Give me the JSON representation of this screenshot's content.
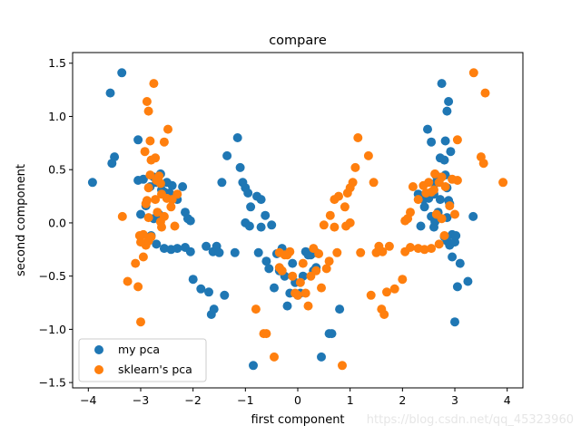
{
  "chart_data": {
    "type": "scatter",
    "title": "compare",
    "xlabel": "first component",
    "ylabel": "second component",
    "xlim": [
      -4.3,
      4.3
    ],
    "ylim": [
      -1.55,
      1.6
    ],
    "xticks": [
      -4,
      -3,
      -2,
      -1,
      0,
      1,
      2,
      3,
      4
    ],
    "xtick_labels": [
      "−4",
      "−3",
      "−2",
      "−1",
      "0",
      "1",
      "2",
      "3",
      "4"
    ],
    "yticks": [
      -1.5,
      -1.0,
      -0.5,
      0.0,
      0.5,
      1.0,
      1.5
    ],
    "ytick_labels": [
      "−1.5",
      "−1.0",
      "−0.5",
      "0.0",
      "0.5",
      "1.0",
      "1.5"
    ],
    "grid": false,
    "legend_position": "lower-left",
    "series": [
      {
        "name": "my pca",
        "color": "#1f77b4",
        "points": [
          [
            -3.92,
            0.38
          ],
          [
            -3.58,
            1.22
          ],
          [
            -3.5,
            0.62
          ],
          [
            -3.55,
            0.56
          ],
          [
            -3.36,
            1.41
          ],
          [
            -3.05,
            0.78
          ],
          [
            -3.05,
            0.4
          ],
          [
            -2.95,
            0.41
          ],
          [
            -3.0,
            0.08
          ],
          [
            -2.9,
            0.16
          ],
          [
            -2.82,
            0.34
          ],
          [
            -2.75,
            0.43
          ],
          [
            -2.7,
            0.38
          ],
          [
            -2.62,
            0.46
          ],
          [
            -2.6,
            0.31
          ],
          [
            -2.55,
            0.29
          ],
          [
            -2.5,
            0.38
          ],
          [
            -2.45,
            0.28
          ],
          [
            -2.4,
            0.35
          ],
          [
            -2.3,
            0.22
          ],
          [
            -2.2,
            0.34
          ],
          [
            -2.15,
            0.1
          ],
          [
            -2.1,
            0.04
          ],
          [
            -2.05,
            0.02
          ],
          [
            -2.65,
            0.08
          ],
          [
            -2.75,
            0.04
          ],
          [
            -2.8,
            -0.12
          ],
          [
            -2.7,
            -0.2
          ],
          [
            -2.55,
            -0.24
          ],
          [
            -2.42,
            -0.25
          ],
          [
            -2.3,
            -0.24
          ],
          [
            -2.15,
            -0.23
          ],
          [
            -2.05,
            -0.27
          ],
          [
            -2.0,
            -0.53
          ],
          [
            -1.85,
            -0.62
          ],
          [
            -1.75,
            -0.22
          ],
          [
            -1.7,
            -0.65
          ],
          [
            -1.65,
            -0.86
          ],
          [
            -1.6,
            -0.81
          ],
          [
            -1.62,
            -0.27
          ],
          [
            -1.55,
            -0.22
          ],
          [
            -1.5,
            -0.28
          ],
          [
            -1.4,
            -0.68
          ],
          [
            -1.45,
            0.38
          ],
          [
            -1.35,
            0.63
          ],
          [
            -1.2,
            -0.28
          ],
          [
            -1.15,
            0.8
          ],
          [
            -1.1,
            0.52
          ],
          [
            -1.05,
            0.38
          ],
          [
            -1.0,
            0.33
          ],
          [
            -0.95,
            0.28
          ],
          [
            -1.0,
            0.0
          ],
          [
            -0.9,
            0.15
          ],
          [
            -0.92,
            -0.03
          ],
          [
            -0.85,
            -1.34
          ],
          [
            -0.78,
            0.25
          ],
          [
            -0.75,
            -0.28
          ],
          [
            -0.7,
            0.22
          ],
          [
            -0.62,
            0.07
          ],
          [
            -0.7,
            -0.04
          ],
          [
            -0.6,
            -0.36
          ],
          [
            -0.55,
            -0.43
          ],
          [
            -0.5,
            -0.02
          ],
          [
            -0.45,
            -0.61
          ],
          [
            -0.4,
            -0.29
          ],
          [
            -0.35,
            -0.45
          ],
          [
            -0.3,
            -0.24
          ],
          [
            -0.25,
            -0.5
          ],
          [
            -0.2,
            -0.78
          ],
          [
            -0.15,
            -0.66
          ],
          [
            -0.1,
            -0.38
          ],
          [
            -0.05,
            -0.56
          ],
          [
            0.0,
            -0.68
          ],
          [
            0.05,
            -0.66
          ],
          [
            0.1,
            -0.5
          ],
          [
            0.15,
            -0.27
          ],
          [
            0.2,
            -0.3
          ],
          [
            0.25,
            -0.3
          ],
          [
            0.3,
            -0.45
          ],
          [
            0.35,
            -0.28
          ],
          [
            0.35,
            -0.42
          ],
          [
            0.45,
            -1.26
          ],
          [
            0.6,
            -1.04
          ],
          [
            0.65,
            -1.04
          ],
          [
            0.8,
            -0.81
          ],
          [
            2.3,
            0.27
          ],
          [
            2.35,
            -0.03
          ],
          [
            2.4,
            0.22
          ],
          [
            2.42,
            0.15
          ],
          [
            2.5,
            0.23
          ],
          [
            2.55,
            0.06
          ],
          [
            2.6,
            0.27
          ],
          [
            2.62,
            0.37
          ],
          [
            2.65,
            0.44
          ],
          [
            2.7,
            0.4
          ],
          [
            2.72,
            0.22
          ],
          [
            2.68,
            0.1
          ],
          [
            2.62,
            0.01
          ],
          [
            2.6,
            -0.04
          ],
          [
            2.55,
            0.76
          ],
          [
            2.48,
            0.88
          ],
          [
            2.72,
            0.61
          ],
          [
            2.75,
            1.31
          ],
          [
            2.8,
            0.59
          ],
          [
            2.82,
            0.45
          ],
          [
            2.85,
            0.33
          ],
          [
            2.88,
            0.21
          ],
          [
            2.9,
            0.18
          ],
          [
            2.85,
            0.05
          ],
          [
            2.8,
            -0.13
          ],
          [
            2.85,
            -0.17
          ],
          [
            2.9,
            -0.21
          ],
          [
            2.95,
            -0.11
          ],
          [
            3.0,
            -0.18
          ],
          [
            3.02,
            -0.12
          ],
          [
            2.95,
            -0.32
          ],
          [
            3.05,
            -0.6
          ],
          [
            3.1,
            -0.38
          ],
          [
            3.0,
            -0.93
          ],
          [
            3.25,
            -0.55
          ],
          [
            3.35,
            0.06
          ],
          [
            2.92,
            0.67
          ],
          [
            2.82,
            0.77
          ],
          [
            2.88,
            1.14
          ],
          [
            2.85,
            1.05
          ]
        ]
      },
      {
        "name": "sklearn's pca",
        "color": "#ff7f0e",
        "points": [
          [
            3.92,
            0.38
          ],
          [
            3.58,
            1.22
          ],
          [
            3.5,
            0.62
          ],
          [
            3.55,
            0.56
          ],
          [
            3.36,
            1.41
          ],
          [
            3.05,
            0.78
          ],
          [
            3.05,
            0.4
          ],
          [
            2.95,
            0.41
          ],
          [
            3.0,
            0.08
          ],
          [
            2.9,
            0.16
          ],
          [
            2.82,
            0.34
          ],
          [
            2.75,
            0.43
          ],
          [
            2.7,
            0.38
          ],
          [
            2.62,
            0.46
          ],
          [
            2.6,
            0.31
          ],
          [
            2.55,
            0.29
          ],
          [
            2.5,
            0.38
          ],
          [
            2.45,
            0.28
          ],
          [
            2.4,
            0.35
          ],
          [
            2.3,
            0.22
          ],
          [
            2.2,
            0.34
          ],
          [
            2.15,
            0.1
          ],
          [
            2.1,
            0.04
          ],
          [
            2.05,
            0.02
          ],
          [
            2.65,
            0.08
          ],
          [
            2.75,
            0.04
          ],
          [
            2.8,
            -0.12
          ],
          [
            2.7,
            -0.2
          ],
          [
            2.55,
            -0.24
          ],
          [
            2.42,
            -0.25
          ],
          [
            2.3,
            -0.24
          ],
          [
            2.15,
            -0.23
          ],
          [
            2.05,
            -0.27
          ],
          [
            2.0,
            -0.53
          ],
          [
            1.85,
            -0.62
          ],
          [
            1.75,
            -0.22
          ],
          [
            1.7,
            -0.65
          ],
          [
            1.65,
            -0.86
          ],
          [
            1.6,
            -0.81
          ],
          [
            1.62,
            -0.27
          ],
          [
            1.55,
            -0.22
          ],
          [
            1.5,
            -0.28
          ],
          [
            1.4,
            -0.68
          ],
          [
            1.45,
            0.38
          ],
          [
            1.35,
            0.63
          ],
          [
            1.2,
            -0.28
          ],
          [
            1.15,
            0.8
          ],
          [
            1.1,
            0.52
          ],
          [
            1.05,
            0.38
          ],
          [
            1.0,
            0.33
          ],
          [
            0.95,
            0.28
          ],
          [
            1.0,
            0.0
          ],
          [
            0.9,
            0.15
          ],
          [
            0.92,
            -0.03
          ],
          [
            0.85,
            -1.34
          ],
          [
            0.78,
            0.25
          ],
          [
            0.75,
            -0.28
          ],
          [
            0.7,
            0.22
          ],
          [
            0.62,
            0.07
          ],
          [
            0.7,
            -0.04
          ],
          [
            0.6,
            -0.36
          ],
          [
            0.55,
            -0.43
          ],
          [
            0.5,
            -0.02
          ],
          [
            0.45,
            -0.61
          ],
          [
            0.4,
            -0.29
          ],
          [
            0.35,
            -0.45
          ],
          [
            0.3,
            -0.24
          ],
          [
            0.25,
            -0.5
          ],
          [
            0.2,
            -0.78
          ],
          [
            0.15,
            -0.66
          ],
          [
            0.1,
            -0.38
          ],
          [
            0.05,
            -0.56
          ],
          [
            0.0,
            -0.68
          ],
          [
            -0.05,
            -0.66
          ],
          [
            -0.1,
            -0.5
          ],
          [
            -0.15,
            -0.27
          ],
          [
            -0.2,
            -0.3
          ],
          [
            -0.25,
            -0.3
          ],
          [
            -0.3,
            -0.45
          ],
          [
            -0.35,
            -0.28
          ],
          [
            -0.35,
            -0.42
          ],
          [
            -0.45,
            -1.26
          ],
          [
            -0.6,
            -1.04
          ],
          [
            -0.65,
            -1.04
          ],
          [
            -0.8,
            -0.81
          ],
          [
            -2.3,
            0.27
          ],
          [
            -2.35,
            -0.03
          ],
          [
            -2.4,
            0.22
          ],
          [
            -2.42,
            0.15
          ],
          [
            -2.5,
            0.23
          ],
          [
            -2.55,
            0.06
          ],
          [
            -2.6,
            0.27
          ],
          [
            -2.62,
            0.37
          ],
          [
            -2.65,
            0.44
          ],
          [
            -2.7,
            0.4
          ],
          [
            -2.72,
            0.22
          ],
          [
            -2.68,
            0.1
          ],
          [
            -2.62,
            0.01
          ],
          [
            -2.6,
            -0.04
          ],
          [
            -2.55,
            0.76
          ],
          [
            -2.48,
            0.88
          ],
          [
            -2.72,
            0.61
          ],
          [
            -2.75,
            1.31
          ],
          [
            -2.8,
            0.59
          ],
          [
            -2.82,
            0.45
          ],
          [
            -2.85,
            0.33
          ],
          [
            -2.88,
            0.21
          ],
          [
            -2.9,
            0.18
          ],
          [
            -2.85,
            0.05
          ],
          [
            -2.8,
            -0.13
          ],
          [
            -2.85,
            -0.17
          ],
          [
            -2.9,
            -0.21
          ],
          [
            -2.95,
            -0.11
          ],
          [
            -3.0,
            -0.18
          ],
          [
            -3.02,
            -0.12
          ],
          [
            -2.95,
            -0.32
          ],
          [
            -3.05,
            -0.6
          ],
          [
            -3.1,
            -0.38
          ],
          [
            -3.0,
            -0.93
          ],
          [
            -3.25,
            -0.55
          ],
          [
            -3.35,
            0.06
          ],
          [
            -2.92,
            0.67
          ],
          [
            -2.82,
            0.77
          ],
          [
            -2.88,
            1.14
          ],
          [
            -2.85,
            1.05
          ]
        ]
      }
    ]
  },
  "watermark": "https://blog.csdn.net/qq_45323960"
}
